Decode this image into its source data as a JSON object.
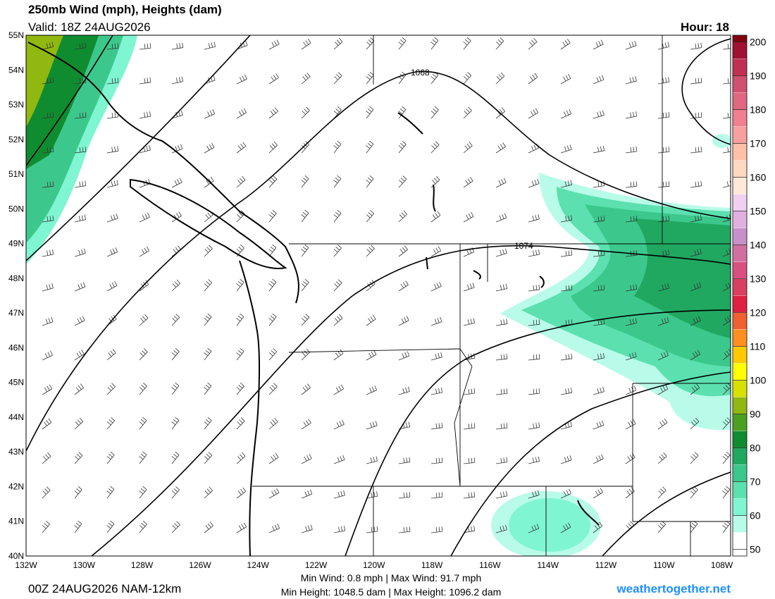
{
  "header": {
    "title": "250mb Wind (mph), Heights (dam)",
    "valid": "Valid: 18Z 24AUG2026",
    "hour": "Hour: 18"
  },
  "map": {
    "lat_labels": [
      "55N",
      "54N",
      "53N",
      "52N",
      "51N",
      "50N",
      "49N",
      "48N",
      "47N",
      "46N",
      "45N",
      "44N",
      "43N",
      "42N",
      "41N",
      "40N"
    ],
    "lon_labels": [
      "132W",
      "130W",
      "128W",
      "126W",
      "124W",
      "122W",
      "120W",
      "118W",
      "116W",
      "114W",
      "112W",
      "110W",
      "108W"
    ],
    "contour_labels": [
      "1068",
      "1074"
    ]
  },
  "colorbar": {
    "ticks": [
      50,
      60,
      70,
      80,
      90,
      100,
      110,
      120,
      130,
      140,
      150,
      160,
      170,
      180,
      190,
      200
    ],
    "lim": [
      48,
      202
    ],
    "step": 5,
    "colors": [
      "#ffffff",
      "#b8fbe8",
      "#7ff5d2",
      "#5ce0b0",
      "#3cc88c",
      "#20a860",
      "#108c30",
      "#4aa020",
      "#90b810",
      "#d8e000",
      "#ffff00",
      "#ffc800",
      "#ff9020",
      "#f06030",
      "#e02040",
      "#d84060",
      "#d85080",
      "#d070a0",
      "#c890c8",
      "#e0b0e0",
      "#f0d0f0",
      "#ffe8d8",
      "#ffd8c0",
      "#ffc0a8",
      "#f8a0a0",
      "#f08090",
      "#e06880",
      "#d05070",
      "#c03050",
      "#a01030",
      "#800010"
    ]
  },
  "footer": {
    "run": "00Z 24AUG2026 NAM-12km",
    "wind": "Min Wind:   0.8 mph | Max Wind:  91.7 mph",
    "height": "Min Height: 1048.5 dam | Max Height: 1096.2 dam",
    "site": "weathertogether.net"
  }
}
